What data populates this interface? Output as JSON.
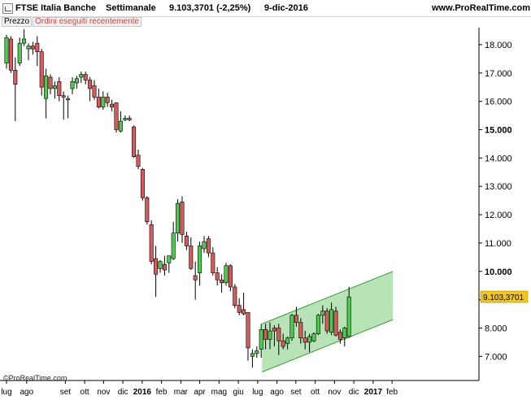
{
  "header": {
    "instrument": "FTSE Italia Banche",
    "timeframe": "Settimanale",
    "last_change": "9.103,3701 (-2,25%)",
    "date": "9-dic-2016",
    "site": "www.ProRealTime.com"
  },
  "legend": {
    "price_label": "Prezzo",
    "orders_label": "Ordini eseguiti recentemente"
  },
  "footer": {
    "copyright": "©ProRealTime.com"
  },
  "colors": {
    "bull": "#4fc94f",
    "bear": "#d85a5a",
    "wick": "#000000",
    "channel_fill": "#9fd99f",
    "channel_line": "#2e9a2e",
    "price_tag": "#f2c51b",
    "grid": "#d0d0d0"
  },
  "chart_data": {
    "type": "candlestick",
    "ylim": [
      6150,
      18600
    ],
    "y_ticks": [
      7000,
      8000,
      9000,
      10000,
      11000,
      12000,
      13000,
      14000,
      15000,
      16000,
      17000,
      18000
    ],
    "y_tick_labels": [
      "7.000",
      "8.000",
      "9.000",
      "10.000",
      "11.000",
      "12.000",
      "13.000",
      "14.000",
      "15.000",
      "16.000",
      "17.000",
      "18.000"
    ],
    "bold_y_ticks": [
      10000,
      15000
    ],
    "x_tick_labels": [
      "lug",
      "ago",
      "set",
      "ott",
      "nov",
      "dic",
      "2016",
      "feb",
      "mar",
      "apr",
      "mag",
      "giu",
      "lug",
      "ago",
      "set",
      "ott",
      "nov",
      "dic",
      "2017",
      "feb"
    ],
    "bold_x_ticks": [
      "2016",
      "2017"
    ],
    "x_tick_weeks": [
      0,
      4.6,
      13.4,
      17.8,
      22.1,
      26.5,
      30.9,
      35.3,
      39.7,
      44.0,
      48.4,
      52.8,
      57.2,
      61.6,
      65.9,
      70.3,
      74.7,
      79.1,
      83.5,
      87.8
    ],
    "x_extent_weeks": [
      -1,
      92
    ],
    "last_price": 9103.3701,
    "last_price_label": "9.103,3701",
    "channel": {
      "start_week": 58.2,
      "end_week": 88.0,
      "upper": [
        8150,
        10000
      ],
      "lower": [
        6450,
        8300
      ]
    },
    "candles": [
      {
        "o": 17350,
        "h": 18350,
        "l": 17150,
        "c": 18250
      },
      {
        "o": 18200,
        "h": 18300,
        "l": 17000,
        "c": 17100
      },
      {
        "o": 17100,
        "h": 17550,
        "l": 15300,
        "c": 16600
      },
      {
        "o": 17350,
        "h": 18250,
        "l": 17250,
        "c": 18050
      },
      {
        "o": 18050,
        "h": 18550,
        "l": 17950,
        "c": 18200
      },
      {
        "o": 17850,
        "h": 18050,
        "l": 17450,
        "c": 17950
      },
      {
        "o": 17950,
        "h": 18100,
        "l": 17650,
        "c": 17850
      },
      {
        "o": 18050,
        "h": 18300,
        "l": 17250,
        "c": 17750
      },
      {
        "o": 17750,
        "h": 17850,
        "l": 16200,
        "c": 16500
      },
      {
        "o": 16100,
        "h": 17150,
        "l": 15400,
        "c": 16900
      },
      {
        "o": 16850,
        "h": 16950,
        "l": 16250,
        "c": 16450
      },
      {
        "o": 16450,
        "h": 16700,
        "l": 16100,
        "c": 16550
      },
      {
        "o": 16700,
        "h": 16850,
        "l": 16000,
        "c": 16200
      },
      {
        "o": 16200,
        "h": 16350,
        "l": 15350,
        "c": 16150
      },
      {
        "o": 16050,
        "h": 16200,
        "l": 15400,
        "c": 16100
      },
      {
        "o": 16450,
        "h": 16850,
        "l": 16250,
        "c": 16700
      },
      {
        "o": 16650,
        "h": 16900,
        "l": 16450,
        "c": 16800
      },
      {
        "o": 16850,
        "h": 17050,
        "l": 16650,
        "c": 16950
      },
      {
        "o": 16950,
        "h": 17050,
        "l": 16600,
        "c": 16750
      },
      {
        "o": 16750,
        "h": 16850,
        "l": 16000,
        "c": 16450
      },
      {
        "o": 16550,
        "h": 16750,
        "l": 16050,
        "c": 16150
      },
      {
        "o": 16150,
        "h": 16450,
        "l": 15750,
        "c": 15800
      },
      {
        "o": 15800,
        "h": 16350,
        "l": 15700,
        "c": 16150
      },
      {
        "o": 16150,
        "h": 16300,
        "l": 15800,
        "c": 15950
      },
      {
        "o": 15900,
        "h": 16050,
        "l": 15650,
        "c": 15800
      },
      {
        "o": 15950,
        "h": 15950,
        "l": 14900,
        "c": 15000
      },
      {
        "o": 14950,
        "h": 15650,
        "l": 14900,
        "c": 15300
      },
      {
        "o": 15350,
        "h": 15500,
        "l": 15300,
        "c": 15400
      },
      {
        "o": 15400,
        "h": 15500,
        "l": 15300,
        "c": 15350
      },
      {
        "o": 15100,
        "h": 15150,
        "l": 14000,
        "c": 14050
      },
      {
        "o": 14100,
        "h": 14300,
        "l": 13600,
        "c": 13700
      },
      {
        "o": 13600,
        "h": 13650,
        "l": 12500,
        "c": 12600
      },
      {
        "o": 12600,
        "h": 12650,
        "l": 11650,
        "c": 11750
      },
      {
        "o": 11650,
        "h": 11800,
        "l": 10250,
        "c": 10350
      },
      {
        "o": 10450,
        "h": 10900,
        "l": 9100,
        "c": 9900
      },
      {
        "o": 10100,
        "h": 10400,
        "l": 9950,
        "c": 10350
      },
      {
        "o": 10250,
        "h": 10550,
        "l": 9850,
        "c": 10050
      },
      {
        "o": 10300,
        "h": 10550,
        "l": 9950,
        "c": 10550
      },
      {
        "o": 10450,
        "h": 11750,
        "l": 10400,
        "c": 11350
      },
      {
        "o": 11350,
        "h": 12550,
        "l": 11050,
        "c": 12400
      },
      {
        "o": 12450,
        "h": 12650,
        "l": 11000,
        "c": 11300
      },
      {
        "o": 11250,
        "h": 11400,
        "l": 10750,
        "c": 10900
      },
      {
        "o": 10900,
        "h": 11200,
        "l": 10050,
        "c": 10100
      },
      {
        "o": 9850,
        "h": 10350,
        "l": 9000,
        "c": 9700
      },
      {
        "o": 9950,
        "h": 11050,
        "l": 9500,
        "c": 10900
      },
      {
        "o": 10800,
        "h": 11250,
        "l": 10650,
        "c": 11050
      },
      {
        "o": 11150,
        "h": 11250,
        "l": 10500,
        "c": 10650
      },
      {
        "o": 10650,
        "h": 10850,
        "l": 9850,
        "c": 9950
      },
      {
        "o": 9950,
        "h": 10150,
        "l": 9500,
        "c": 9700
      },
      {
        "o": 9700,
        "h": 9900,
        "l": 9250,
        "c": 9600
      },
      {
        "o": 9600,
        "h": 10300,
        "l": 9500,
        "c": 10200
      },
      {
        "o": 10200,
        "h": 10250,
        "l": 9300,
        "c": 9450
      },
      {
        "o": 9450,
        "h": 9550,
        "l": 8700,
        "c": 8800
      },
      {
        "o": 8800,
        "h": 9050,
        "l": 8450,
        "c": 8550
      },
      {
        "o": 8650,
        "h": 9250,
        "l": 8450,
        "c": 8500
      },
      {
        "o": 8550,
        "h": 8550,
        "l": 6850,
        "c": 7300
      },
      {
        "o": 7000,
        "h": 7250,
        "l": 6600,
        "c": 7100
      },
      {
        "o": 7100,
        "h": 7350,
        "l": 6950,
        "c": 7200
      },
      {
        "o": 7250,
        "h": 8150,
        "l": 6950,
        "c": 7950
      },
      {
        "o": 7950,
        "h": 8150,
        "l": 7250,
        "c": 7600
      },
      {
        "o": 7600,
        "h": 8200,
        "l": 7250,
        "c": 7900
      },
      {
        "o": 8000,
        "h": 8100,
        "l": 7350,
        "c": 7900
      },
      {
        "o": 8000,
        "h": 8150,
        "l": 7050,
        "c": 7550
      },
      {
        "o": 7550,
        "h": 7800,
        "l": 7250,
        "c": 7350
      },
      {
        "o": 7450,
        "h": 7700,
        "l": 7250,
        "c": 7650
      },
      {
        "o": 7650,
        "h": 8500,
        "l": 7550,
        "c": 8450
      },
      {
        "o": 8450,
        "h": 8750,
        "l": 8050,
        "c": 8200
      },
      {
        "o": 8200,
        "h": 8350,
        "l": 7450,
        "c": 7650
      },
      {
        "o": 7650,
        "h": 7900,
        "l": 7250,
        "c": 7500
      },
      {
        "o": 7500,
        "h": 7800,
        "l": 7150,
        "c": 7700
      },
      {
        "o": 7550,
        "h": 7850,
        "l": 7500,
        "c": 7800
      },
      {
        "o": 7800,
        "h": 8500,
        "l": 7750,
        "c": 8450
      },
      {
        "o": 8450,
        "h": 8800,
        "l": 8150,
        "c": 8600
      },
      {
        "o": 8600,
        "h": 8700,
        "l": 7800,
        "c": 7900
      },
      {
        "o": 7850,
        "h": 8900,
        "l": 7750,
        "c": 8650
      },
      {
        "o": 8600,
        "h": 8750,
        "l": 7700,
        "c": 7750
      },
      {
        "o": 7850,
        "h": 7950,
        "l": 7450,
        "c": 7600
      },
      {
        "o": 7650,
        "h": 8050,
        "l": 7350,
        "c": 8000
      },
      {
        "o": 7700,
        "h": 9450,
        "l": 7650,
        "c": 9100
      }
    ]
  }
}
